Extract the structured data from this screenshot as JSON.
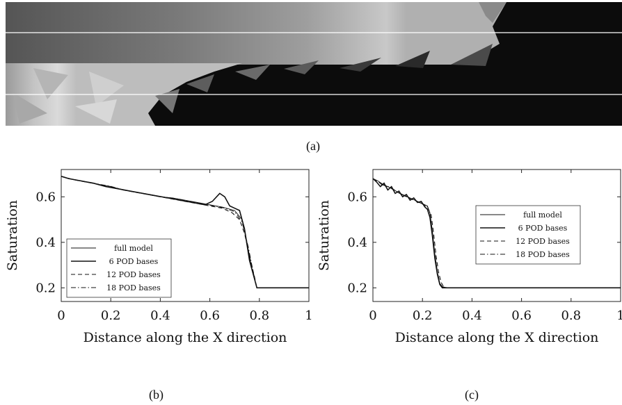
{
  "figure_a": {
    "caption": "(a)"
  },
  "chart_data": [
    {
      "type": "line",
      "caption": "(b)",
      "xlabel": "Distance along the X direction",
      "ylabel": "Saturation",
      "xlim": [
        0,
        1
      ],
      "ylim": [
        0.14,
        0.72
      ],
      "xticks": [
        0,
        0.2,
        0.4,
        0.6,
        0.8,
        1
      ],
      "xtick_labels": [
        "0",
        "0.2",
        "0.4",
        "0.6",
        "0.8",
        "1"
      ],
      "yticks": [
        0.2,
        0.4,
        0.6
      ],
      "ytick_labels": [
        "0.2",
        "0.4",
        "0.6"
      ],
      "legend_position": "bottom-left",
      "series": [
        {
          "name": "full model",
          "style": "solid-thin",
          "x": [
            0,
            0.05,
            0.1,
            0.15,
            0.2,
            0.25,
            0.3,
            0.35,
            0.4,
            0.45,
            0.5,
            0.55,
            0.6,
            0.65,
            0.7,
            0.73,
            0.75,
            0.77,
            0.79,
            0.8,
            0.9,
            1
          ],
          "y": [
            0.69,
            0.675,
            0.665,
            0.655,
            0.645,
            0.63,
            0.62,
            0.61,
            0.6,
            0.595,
            0.585,
            0.575,
            0.565,
            0.555,
            0.54,
            0.5,
            0.4,
            0.28,
            0.2,
            0.2,
            0.2,
            0.2
          ]
        },
        {
          "name": "6 POD bases",
          "style": "solid-thick",
          "x": [
            0,
            0.03,
            0.08,
            0.13,
            0.18,
            0.23,
            0.28,
            0.33,
            0.38,
            0.43,
            0.48,
            0.53,
            0.58,
            0.61,
            0.64,
            0.66,
            0.68,
            0.7,
            0.72,
            0.74,
            0.76,
            0.78,
            0.79,
            0.8,
            0.9,
            1
          ],
          "y": [
            0.69,
            0.68,
            0.67,
            0.66,
            0.645,
            0.635,
            0.625,
            0.615,
            0.605,
            0.595,
            0.585,
            0.575,
            0.565,
            0.58,
            0.615,
            0.6,
            0.56,
            0.55,
            0.54,
            0.46,
            0.32,
            0.24,
            0.2,
            0.2,
            0.2,
            0.2
          ]
        },
        {
          "name": "12 POD bases",
          "style": "dashed",
          "x": [
            0,
            0.05,
            0.1,
            0.15,
            0.2,
            0.25,
            0.3,
            0.35,
            0.4,
            0.45,
            0.5,
            0.55,
            0.6,
            0.65,
            0.69,
            0.72,
            0.74,
            0.76,
            0.78,
            0.79,
            0.8,
            0.9,
            1
          ],
          "y": [
            0.69,
            0.675,
            0.665,
            0.655,
            0.645,
            0.63,
            0.62,
            0.61,
            0.6,
            0.59,
            0.58,
            0.57,
            0.56,
            0.55,
            0.53,
            0.5,
            0.44,
            0.34,
            0.25,
            0.2,
            0.2,
            0.2,
            0.2
          ]
        },
        {
          "name": "18 POD bases",
          "style": "dashdot",
          "x": [
            0,
            0.05,
            0.1,
            0.15,
            0.2,
            0.25,
            0.3,
            0.35,
            0.4,
            0.45,
            0.5,
            0.55,
            0.6,
            0.65,
            0.7,
            0.73,
            0.755,
            0.775,
            0.79,
            0.8,
            0.9,
            1
          ],
          "y": [
            0.69,
            0.676,
            0.666,
            0.656,
            0.646,
            0.631,
            0.621,
            0.611,
            0.601,
            0.594,
            0.584,
            0.574,
            0.563,
            0.553,
            0.535,
            0.49,
            0.38,
            0.27,
            0.2,
            0.2,
            0.2,
            0.2
          ]
        }
      ]
    },
    {
      "type": "line",
      "caption": "(c)",
      "xlabel": "Distance along the X direction",
      "ylabel": "Saturation",
      "xlim": [
        0,
        1
      ],
      "ylim": [
        0.14,
        0.72
      ],
      "xticks": [
        0,
        0.2,
        0.4,
        0.6,
        0.8,
        1
      ],
      "xtick_labels": [
        "0",
        "0.2",
        "0.4",
        "0.6",
        "0.8",
        "1"
      ],
      "yticks": [
        0.2,
        0.4,
        0.6
      ],
      "ytick_labels": [
        "0.2",
        "0.4",
        "0.6"
      ],
      "legend_position": "upper-right",
      "series": [
        {
          "name": "full model",
          "style": "solid-thin",
          "x": [
            0,
            0.02,
            0.04,
            0.06,
            0.08,
            0.1,
            0.12,
            0.14,
            0.16,
            0.18,
            0.2,
            0.22,
            0.23,
            0.24,
            0.25,
            0.26,
            0.27,
            0.28,
            0.3,
            0.4,
            0.6,
            0.8,
            1
          ],
          "y": [
            0.68,
            0.67,
            0.655,
            0.645,
            0.635,
            0.62,
            0.61,
            0.6,
            0.59,
            0.58,
            0.57,
            0.56,
            0.53,
            0.45,
            0.35,
            0.27,
            0.22,
            0.205,
            0.2,
            0.2,
            0.2,
            0.2,
            0.2
          ]
        },
        {
          "name": "6 POD bases",
          "style": "solid-thick",
          "x": [
            0,
            0.015,
            0.03,
            0.045,
            0.06,
            0.075,
            0.09,
            0.105,
            0.12,
            0.135,
            0.15,
            0.165,
            0.18,
            0.195,
            0.21,
            0.22,
            0.23,
            0.24,
            0.25,
            0.26,
            0.27,
            0.28,
            0.3,
            0.4,
            0.6,
            0.8,
            1
          ],
          "y": [
            0.68,
            0.665,
            0.645,
            0.66,
            0.63,
            0.645,
            0.615,
            0.625,
            0.6,
            0.61,
            0.585,
            0.595,
            0.575,
            0.58,
            0.555,
            0.545,
            0.51,
            0.43,
            0.33,
            0.26,
            0.215,
            0.2,
            0.2,
            0.2,
            0.2,
            0.2,
            0.2
          ]
        },
        {
          "name": "12 POD bases",
          "style": "dashed",
          "x": [
            0,
            0.02,
            0.04,
            0.06,
            0.08,
            0.1,
            0.12,
            0.14,
            0.16,
            0.18,
            0.2,
            0.22,
            0.235,
            0.245,
            0.255,
            0.265,
            0.275,
            0.285,
            0.3,
            0.4,
            0.6,
            0.8,
            1
          ],
          "y": [
            0.68,
            0.668,
            0.65,
            0.645,
            0.633,
            0.62,
            0.608,
            0.598,
            0.588,
            0.578,
            0.568,
            0.555,
            0.52,
            0.44,
            0.34,
            0.27,
            0.225,
            0.205,
            0.2,
            0.2,
            0.2,
            0.2,
            0.2
          ]
        },
        {
          "name": "18 POD bases",
          "style": "dashdot",
          "x": [
            0,
            0.02,
            0.04,
            0.06,
            0.08,
            0.1,
            0.12,
            0.14,
            0.16,
            0.18,
            0.2,
            0.22,
            0.23,
            0.24,
            0.25,
            0.26,
            0.27,
            0.28,
            0.3,
            0.4,
            0.6,
            0.8,
            1
          ],
          "y": [
            0.68,
            0.669,
            0.652,
            0.646,
            0.634,
            0.621,
            0.609,
            0.599,
            0.589,
            0.579,
            0.569,
            0.558,
            0.528,
            0.45,
            0.345,
            0.272,
            0.222,
            0.204,
            0.2,
            0.2,
            0.2,
            0.2,
            0.2
          ]
        }
      ]
    }
  ]
}
